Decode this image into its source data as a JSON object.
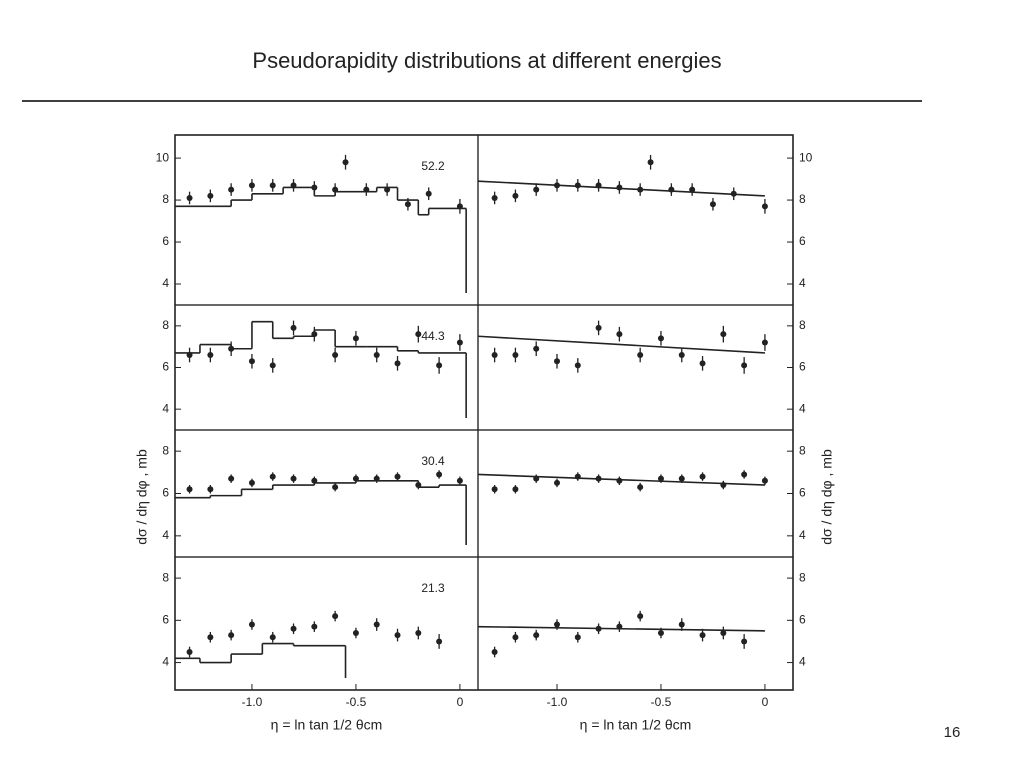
{
  "slide": {
    "title": "Pseudorapidity distributions at different energies",
    "page": "16"
  },
  "chart_data": [
    {
      "type": "scatter",
      "label": "52.2",
      "xlim": [
        -1.37,
        0.087
      ],
      "ylim": [
        3,
        11.1
      ],
      "yticks": [
        4,
        6,
        8,
        10
      ],
      "x": [
        -1.3,
        -1.2,
        -1.1,
        -1.0,
        -0.9,
        -0.8,
        -0.7,
        -0.6,
        -0.55,
        -0.45,
        -0.35,
        -0.25,
        -0.15,
        0
      ],
      "values": [
        8.1,
        8.2,
        8.5,
        8.7,
        8.7,
        8.7,
        8.6,
        8.5,
        9.8,
        8.5,
        8.5,
        7.8,
        8.3,
        7.7
      ],
      "errors": [
        0.3,
        0.3,
        0.3,
        0.3,
        0.3,
        0.3,
        0.3,
        0.3,
        0.35,
        0.3,
        0.3,
        0.3,
        0.3,
        0.35
      ],
      "step": {
        "bins": [
          -1.37,
          -1.1,
          -1.0,
          -0.85,
          -0.7,
          -0.6,
          -0.4,
          -0.3,
          -0.2,
          -0.15,
          0.03
        ],
        "values": [
          7.7,
          8.0,
          8.3,
          8.6,
          8.2,
          8.4,
          8.6,
          8.0,
          7.3,
          7.6
        ]
      }
    },
    {
      "type": "scatter",
      "xlim": [
        -1.38,
        0.135
      ],
      "ylim": [
        3,
        11.1
      ],
      "yticks": [
        4,
        6,
        8,
        10
      ],
      "x": [
        -1.3,
        -1.2,
        -1.1,
        -1.0,
        -0.9,
        -0.8,
        -0.7,
        -0.6,
        -0.55,
        -0.45,
        -0.35,
        -0.25,
        -0.15,
        0
      ],
      "values": [
        8.1,
        8.2,
        8.5,
        8.7,
        8.7,
        8.7,
        8.6,
        8.5,
        9.8,
        8.5,
        8.5,
        7.8,
        8.3,
        7.7
      ],
      "errors": [
        0.3,
        0.3,
        0.3,
        0.3,
        0.3,
        0.3,
        0.3,
        0.3,
        0.35,
        0.3,
        0.3,
        0.3,
        0.3,
        0.35
      ],
      "fit": {
        "x": [
          -1.38,
          0
        ],
        "values": [
          8.9,
          8.2
        ]
      }
    },
    {
      "type": "scatter",
      "label": "44.3",
      "xlim": [
        -1.37,
        0.087
      ],
      "ylim": [
        3,
        9
      ],
      "yticks": [
        4,
        6,
        8
      ],
      "ylabel": "dσ / dη dφ , mb",
      "x": [
        -1.3,
        -1.2,
        -1.1,
        -1.0,
        -0.9,
        -0.8,
        -0.7,
        -0.6,
        -0.5,
        -0.4,
        -0.3,
        -0.2,
        -0.1,
        0
      ],
      "values": [
        6.6,
        6.6,
        6.9,
        6.3,
        6.1,
        7.9,
        7.6,
        6.6,
        7.4,
        6.6,
        6.2,
        7.6,
        6.1,
        7.2
      ],
      "errors": [
        0.35,
        0.35,
        0.35,
        0.35,
        0.35,
        0.35,
        0.35,
        0.35,
        0.35,
        0.35,
        0.35,
        0.4,
        0.4,
        0.4
      ],
      "step": {
        "bins": [
          -1.37,
          -1.25,
          -1.1,
          -1.0,
          -0.9,
          -0.8,
          -0.7,
          -0.6,
          -0.45,
          -0.3,
          -0.2,
          0.03
        ],
        "values": [
          6.7,
          7.1,
          6.9,
          8.2,
          7.4,
          7.5,
          7.8,
          7.0,
          7.0,
          6.8,
          6.7
        ]
      }
    },
    {
      "type": "scatter",
      "xlim": [
        -1.38,
        0.135
      ],
      "ylim": [
        3,
        9
      ],
      "yticks": [
        4,
        6,
        8
      ],
      "ylabel": "dσ / dη dφ , mb",
      "x": [
        -1.3,
        -1.2,
        -1.1,
        -1.0,
        -0.9,
        -0.8,
        -0.7,
        -0.6,
        -0.5,
        -0.4,
        -0.3,
        -0.2,
        -0.1,
        0
      ],
      "values": [
        6.6,
        6.6,
        6.9,
        6.3,
        6.1,
        7.9,
        7.6,
        6.6,
        7.4,
        6.6,
        6.2,
        7.6,
        6.1,
        7.2
      ],
      "errors": [
        0.35,
        0.35,
        0.35,
        0.35,
        0.35,
        0.35,
        0.35,
        0.35,
        0.35,
        0.35,
        0.35,
        0.4,
        0.4,
        0.4
      ],
      "fit": {
        "x": [
          -1.38,
          0
        ],
        "values": [
          7.5,
          6.7
        ]
      }
    },
    {
      "type": "scatter",
      "label": "30.4",
      "xlim": [
        -1.37,
        0.087
      ],
      "ylim": [
        3,
        9
      ],
      "yticks": [
        4,
        6,
        8
      ],
      "x": [
        -1.3,
        -1.2,
        -1.1,
        -1.0,
        -0.9,
        -0.8,
        -0.7,
        -0.6,
        -0.5,
        -0.4,
        -0.3,
        -0.2,
        -0.1,
        0
      ],
      "values": [
        6.2,
        6.2,
        6.7,
        6.5,
        6.8,
        6.7,
        6.6,
        6.3,
        6.7,
        6.7,
        6.8,
        6.4,
        6.9,
        6.6
      ],
      "errors": [
        0.2,
        0.2,
        0.2,
        0.2,
        0.2,
        0.2,
        0.2,
        0.2,
        0.2,
        0.2,
        0.2,
        0.2,
        0.2,
        0.2
      ],
      "step": {
        "bins": [
          -1.37,
          -1.2,
          -1.05,
          -0.9,
          -0.7,
          -0.5,
          -0.3,
          -0.2,
          -0.1,
          0.03
        ],
        "values": [
          5.8,
          5.9,
          6.2,
          6.4,
          6.5,
          6.6,
          6.6,
          6.3,
          6.4
        ]
      }
    },
    {
      "type": "scatter",
      "xlim": [
        -1.38,
        0.135
      ],
      "ylim": [
        3,
        9
      ],
      "yticks": [
        4,
        6,
        8
      ],
      "x": [
        -1.3,
        -1.2,
        -1.1,
        -1.0,
        -0.9,
        -0.8,
        -0.7,
        -0.6,
        -0.5,
        -0.4,
        -0.3,
        -0.2,
        -0.1,
        0
      ],
      "values": [
        6.2,
        6.2,
        6.7,
        6.5,
        6.8,
        6.7,
        6.6,
        6.3,
        6.7,
        6.7,
        6.8,
        6.4,
        6.9,
        6.6
      ],
      "errors": [
        0.2,
        0.2,
        0.2,
        0.2,
        0.2,
        0.2,
        0.2,
        0.2,
        0.2,
        0.2,
        0.2,
        0.2,
        0.2,
        0.2
      ],
      "fit": {
        "x": [
          -1.38,
          0
        ],
        "values": [
          6.9,
          6.4
        ]
      }
    },
    {
      "type": "scatter",
      "label": "21.3",
      "xlim": [
        -1.37,
        0.087
      ],
      "ylim": [
        2.7,
        9
      ],
      "yticks": [
        4,
        6,
        8
      ],
      "xlabel": "η = ln tan 1/2 θcm",
      "xticks": [
        {
          "value": -1,
          "label": "-1.0"
        },
        {
          "value": -0.5,
          "label": "-0.5"
        },
        0
      ],
      "x": [
        -1.3,
        -1.2,
        -1.1,
        -1.0,
        -0.9,
        -0.8,
        -0.7,
        -0.6,
        -0.5,
        -0.4,
        -0.3,
        -0.2,
        -0.1
      ],
      "values": [
        4.5,
        5.2,
        5.3,
        5.8,
        5.2,
        5.6,
        5.7,
        6.2,
        5.4,
        5.8,
        5.3,
        5.4,
        5.0
      ],
      "errors": [
        0.25,
        0.25,
        0.25,
        0.25,
        0.25,
        0.25,
        0.25,
        0.25,
        0.25,
        0.3,
        0.3,
        0.3,
        0.35
      ],
      "step": {
        "bins": [
          -1.37,
          -1.25,
          -1.1,
          -0.95,
          -0.8,
          -0.55
        ],
        "values": [
          4.2,
          4.0,
          4.4,
          4.9,
          4.8
        ]
      }
    },
    {
      "type": "scatter",
      "xlim": [
        -1.38,
        0.135
      ],
      "ylim": [
        2.7,
        9
      ],
      "yticks": [
        4,
        6,
        8
      ],
      "xlabel": "η = ln tan 1/2 θcm",
      "xticks": [
        {
          "value": -1,
          "label": "-1.0"
        },
        {
          "value": -0.5,
          "label": "-0.5"
        },
        0
      ],
      "x": [
        -1.3,
        -1.2,
        -1.1,
        -1.0,
        -0.9,
        -0.8,
        -0.7,
        -0.6,
        -0.5,
        -0.4,
        -0.3,
        -0.2,
        -0.1
      ],
      "values": [
        4.5,
        5.2,
        5.3,
        5.8,
        5.2,
        5.6,
        5.7,
        6.2,
        5.4,
        5.8,
        5.3,
        5.4,
        5.0
      ],
      "errors": [
        0.25,
        0.25,
        0.25,
        0.25,
        0.25,
        0.25,
        0.25,
        0.25,
        0.25,
        0.3,
        0.3,
        0.3,
        0.35
      ],
      "fit": {
        "x": [
          -1.38,
          0
        ],
        "values": [
          5.7,
          5.5
        ]
      }
    }
  ]
}
